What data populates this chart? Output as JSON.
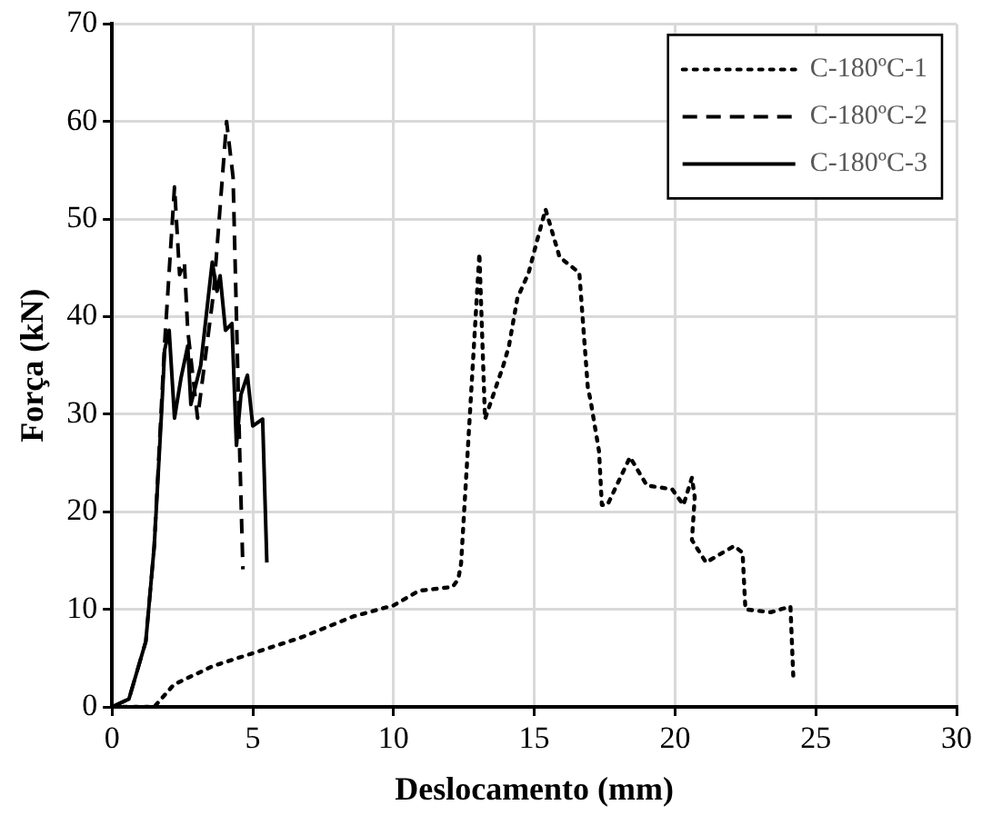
{
  "chart_data": {
    "type": "line",
    "xlabel": "Deslocamento (mm)",
    "ylabel": "Força (kN)",
    "xlim": [
      0,
      30
    ],
    "xticks": [
      0,
      5,
      10,
      15,
      20,
      25,
      30
    ],
    "ylim": [
      0,
      70
    ],
    "yticks": [
      0,
      10,
      20,
      30,
      40,
      50,
      60,
      70
    ],
    "grid": true,
    "legend": "top right",
    "marker": "none",
    "series": [
      {
        "name": "C-180ºC-1",
        "color": "#000000",
        "line_style": "dotted",
        "x": [
          0.4,
          1.5,
          2.2,
          3.6,
          5.0,
          6.7,
          8.6,
          10.0,
          10.9,
          12.1,
          12.3,
          12.4,
          13.05,
          13.25,
          13.9,
          14.1,
          14.4,
          14.8,
          15.1,
          15.4,
          15.9,
          16.6,
          16.7,
          16.9,
          17.0,
          17.3,
          17.4,
          17.6,
          18.4,
          19.0,
          19.9,
          20.3,
          20.6,
          20.7,
          20.6,
          21.1,
          22.1,
          22.4,
          22.5,
          23.4,
          24.1,
          24.2
        ],
        "values": [
          0,
          0,
          2.3,
          4.2,
          5.5,
          7.1,
          9.3,
          10.4,
          11.9,
          12.3,
          13.1,
          14.7,
          46.5,
          29.5,
          35,
          37,
          41.9,
          44.5,
          47.8,
          51,
          46.1,
          44.5,
          40.6,
          32.8,
          31.4,
          26.2,
          20.7,
          20.7,
          25.6,
          22.7,
          22.3,
          20.7,
          23.5,
          21.5,
          17.1,
          14.8,
          16.5,
          15.8,
          10,
          9.7,
          10.3,
          3.2
        ]
      },
      {
        "name": "C-180ºC-2",
        "color": "#000000",
        "line_style": "dashed",
        "x": [
          0,
          0.6,
          1.2,
          1.5,
          1.87,
          2.22,
          2.4,
          2.57,
          2.69,
          3.04,
          3.38,
          3.61,
          3.96,
          4.07,
          4.3,
          4.42,
          4.54,
          4.65
        ],
        "values": [
          0,
          0.8,
          6.7,
          16.5,
          37.3,
          53.3,
          44.3,
          45.6,
          38.6,
          29.6,
          37.3,
          42.5,
          55.8,
          60,
          54.3,
          40,
          25.6,
          14.1
        ]
      },
      {
        "name": "C-180ºC-3",
        "color": "#000000",
        "line_style": "solid",
        "x": [
          0,
          0.6,
          1.2,
          1.5,
          1.76,
          1.87,
          2.03,
          2.22,
          2.45,
          2.69,
          2.8,
          3.15,
          3.42,
          3.56,
          3.73,
          3.84,
          4.03,
          4.26,
          4.42,
          4.58,
          4.81,
          5.0,
          5.35,
          5.5
        ],
        "values": [
          0,
          0.8,
          6.7,
          16.5,
          30.2,
          36.6,
          38.6,
          29.6,
          33.7,
          37,
          31,
          35,
          42,
          45.6,
          42.6,
          44.2,
          38.6,
          39.3,
          26.8,
          32,
          34,
          28.8,
          29.5,
          14.8
        ]
      }
    ]
  }
}
